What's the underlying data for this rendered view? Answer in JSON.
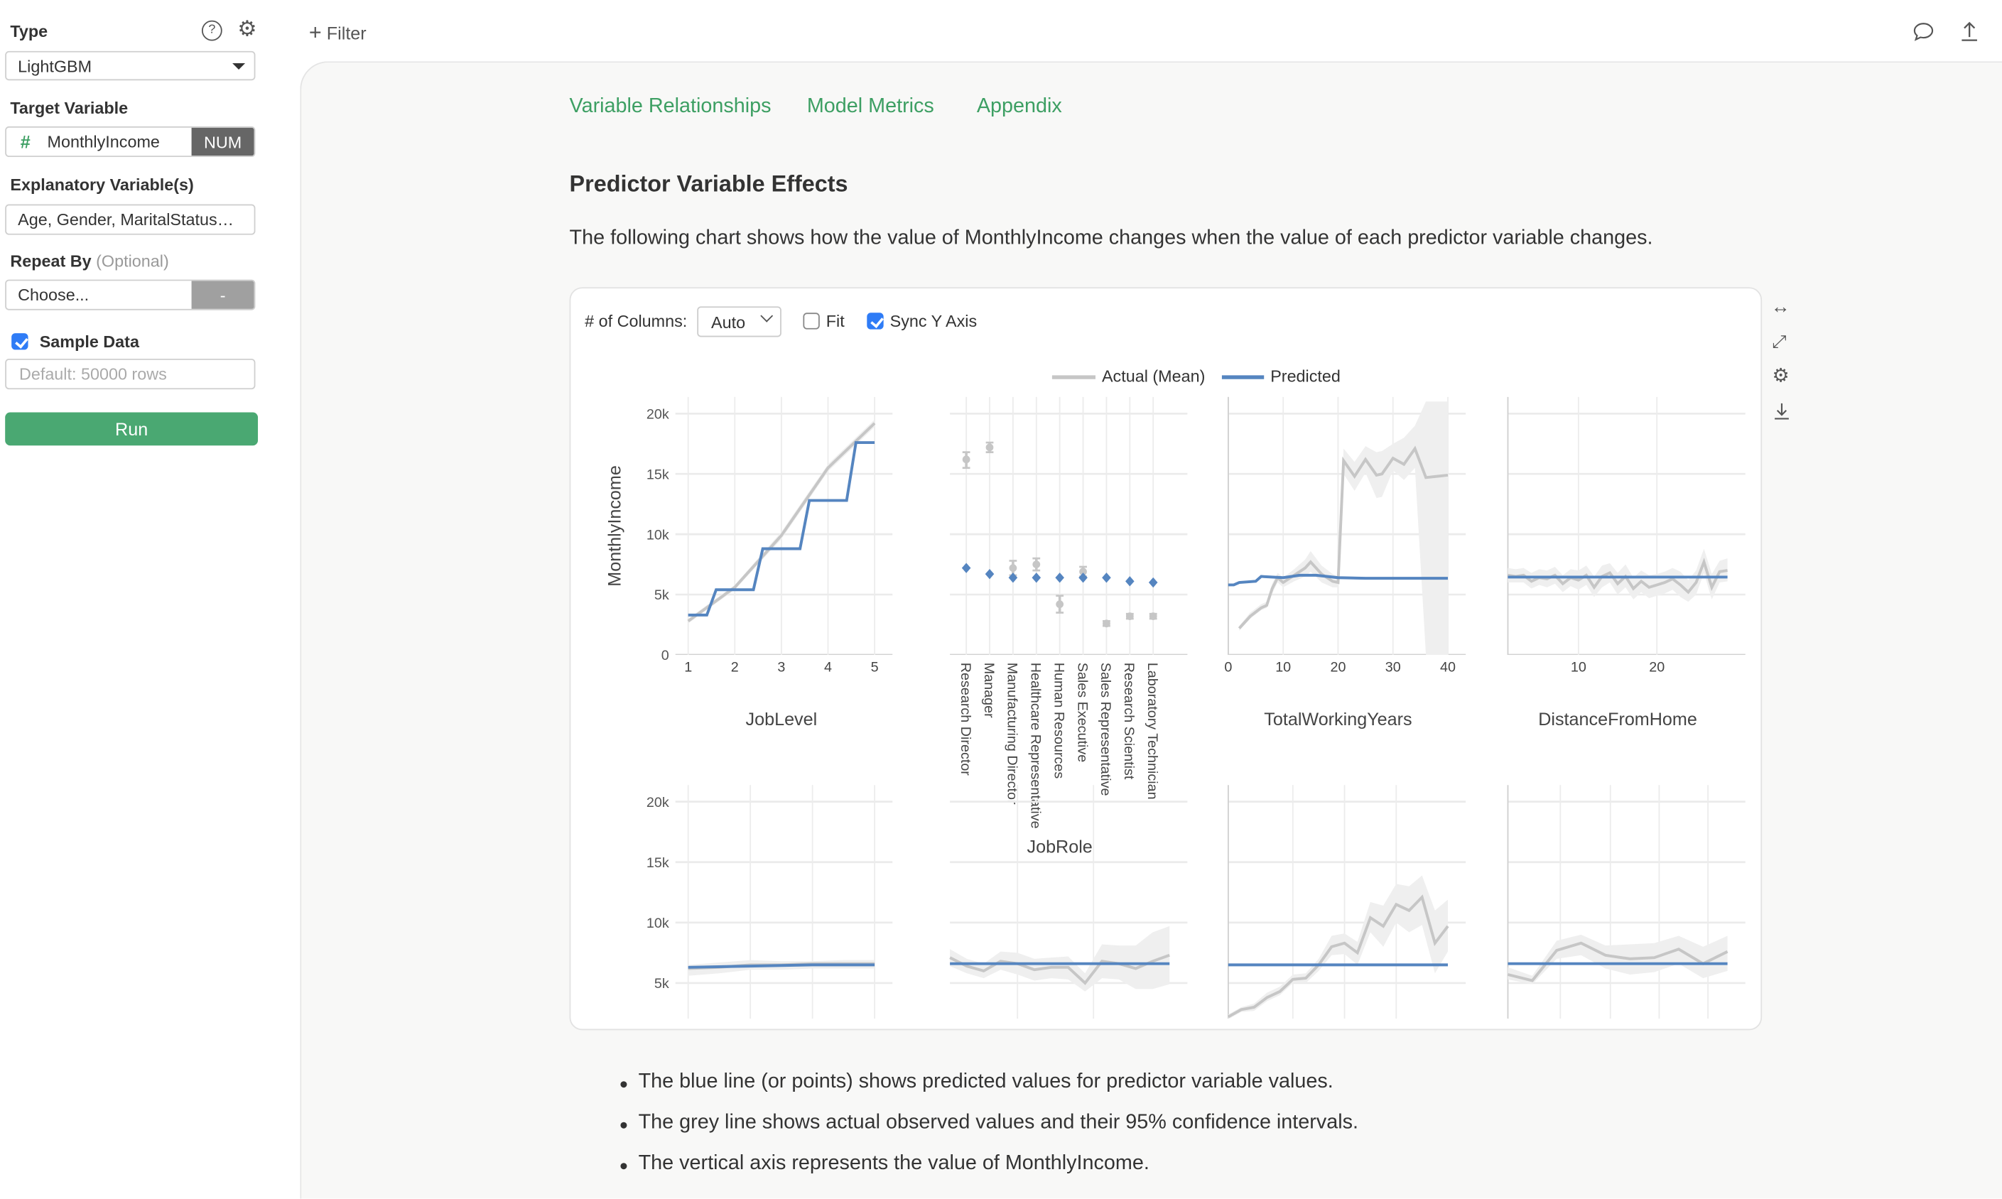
{
  "sidebar": {
    "type_label": "Type",
    "type_value": "LightGBM",
    "target_label": "Target Variable",
    "target_icon": "#",
    "target_value": "MonthlyIncome",
    "target_badge": "NUM",
    "explanatory_label": "Explanatory Variable(s)",
    "explanatory_value": "Age, Gender, MaritalStatus…",
    "repeat_label": "Repeat By",
    "repeat_optional": "(Optional)",
    "repeat_value": "Choose...",
    "repeat_button": "-",
    "sample_label": "Sample Data",
    "sample_checked": true,
    "sample_placeholder": "Default: 50000 rows",
    "run_label": "Run"
  },
  "topbar": {
    "filter_label": "Filter"
  },
  "main": {
    "tabs": [
      "Variable Relationships",
      "Model Metrics",
      "Appendix"
    ],
    "heading": "Predictor Variable Effects",
    "description": "The following chart shows how the value of MonthlyIncome changes when the value of each predictor variable changes.",
    "controls": {
      "columns_label": "# of Columns:",
      "columns_value": "Auto",
      "fit_label": "Fit",
      "fit_checked": false,
      "sync_label": "Sync Y Axis",
      "sync_checked": true
    },
    "notes": [
      "The blue line (or points) shows predicted values for predictor variable values.",
      "The grey line shows actual observed values and their 95% confidence intervals.",
      "The vertical axis represents the value of MonthlyIncome."
    ]
  },
  "colors": {
    "accent": "#3d9f63",
    "run": "#4aa872",
    "predicted": "#5585c0",
    "actual": "#c6c6c6",
    "band": "#efefef"
  },
  "chart_data": {
    "type": "line",
    "ylabel": "MonthlyIncome",
    "legend": [
      "Actual (Mean)",
      "Predicted"
    ],
    "legend_position": "top-center",
    "ylim": [
      0,
      20000
    ],
    "y_ticks": [
      "0",
      "5k",
      "10k",
      "15k",
      "20k"
    ],
    "y_tick_values": [
      0,
      5,
      10,
      15,
      20
    ],
    "y_unit": "thousands",
    "panels": [
      {
        "title": "JobLevel",
        "kind": "line",
        "x_range": [
          1,
          5
        ],
        "x_ticks": [
          1,
          2,
          3,
          4,
          5
        ],
        "actual": [
          [
            1,
            2.8,
            2.6,
            3.0
          ],
          [
            2,
            5.6,
            5.4,
            5.8
          ],
          [
            3,
            9.9,
            9.6,
            10.2
          ],
          [
            4,
            15.5,
            15.2,
            15.8
          ],
          [
            5,
            19.2,
            18.9,
            19.5
          ]
        ],
        "predicted": [
          [
            1,
            3.3
          ],
          [
            1.4,
            3.3
          ],
          [
            1.6,
            5.4
          ],
          [
            2.4,
            5.4
          ],
          [
            2.6,
            8.8
          ],
          [
            3.4,
            8.8
          ],
          [
            3.6,
            12.8
          ],
          [
            4.4,
            12.8
          ],
          [
            4.6,
            17.6
          ],
          [
            5,
            17.6
          ]
        ]
      },
      {
        "title": "JobRole",
        "kind": "category",
        "categories": [
          "Research Director",
          "Manager",
          "Manufacturing Director",
          "Healthcare Representative",
          "Human Resources",
          "Sales Executive",
          "Sales Representative",
          "Research Scientist",
          "Laboratory Technician"
        ],
        "actual": [
          [
            16.2,
            15.5,
            16.8
          ],
          [
            17.2,
            16.8,
            17.6
          ],
          [
            7.2,
            6.6,
            7.8
          ],
          [
            7.5,
            7.0,
            8.0
          ],
          [
            4.2,
            3.5,
            4.9
          ],
          [
            6.9,
            6.5,
            7.3
          ],
          [
            2.6,
            2.4,
            2.8
          ],
          [
            3.2,
            3.0,
            3.4
          ],
          [
            3.2,
            3.0,
            3.4
          ]
        ],
        "predicted": [
          7.2,
          6.7,
          6.4,
          6.4,
          6.4,
          6.4,
          6.4,
          6.1,
          6.0
        ]
      },
      {
        "title": "TotalWorkingYears",
        "kind": "line",
        "x_range": [
          0,
          40
        ],
        "x_ticks": [
          0,
          10,
          20,
          30,
          40
        ],
        "actual": [
          [
            2,
            2.2,
            2.0,
            2.4
          ],
          [
            4,
            3.2,
            3.0,
            3.5
          ],
          [
            6,
            3.9,
            3.7,
            4.2
          ],
          [
            7,
            4.1,
            3.9,
            4.4
          ],
          [
            8,
            5.5,
            5.1,
            5.9
          ],
          [
            9,
            6.4,
            6.0,
            6.8
          ],
          [
            10,
            6.0,
            5.6,
            6.4
          ],
          [
            12,
            6.6,
            6.1,
            7.1
          ],
          [
            14,
            7.2,
            6.5,
            7.9
          ],
          [
            15,
            7.7,
            6.9,
            8.6
          ],
          [
            17,
            6.7,
            6.0,
            7.4
          ],
          [
            19,
            6.1,
            5.6,
            6.7
          ],
          [
            20,
            6.0,
            5.6,
            6.5
          ],
          [
            21,
            16.1,
            15.0,
            17.1
          ],
          [
            23,
            14.8,
            13.6,
            16.0
          ],
          [
            25,
            16.2,
            15.1,
            17.3
          ],
          [
            27,
            14.9,
            13.0,
            16.8
          ],
          [
            28,
            15.0,
            13.1,
            16.9
          ],
          [
            30,
            16.3,
            15.3,
            17.5
          ],
          [
            32,
            15.8,
            14.5,
            18.0
          ],
          [
            34,
            17.1,
            15.5,
            19.0
          ],
          [
            36,
            14.7,
            0,
            21.0
          ],
          [
            38,
            14.8,
            0,
            21.0
          ],
          [
            40,
            14.9,
            0,
            21.0
          ]
        ],
        "predicted": [
          [
            0,
            5.8
          ],
          [
            1,
            5.8
          ],
          [
            2,
            6.0
          ],
          [
            5,
            6.1
          ],
          [
            6,
            6.5
          ],
          [
            10,
            6.4
          ],
          [
            13,
            6.6
          ],
          [
            16,
            6.6
          ],
          [
            20,
            6.4
          ],
          [
            25,
            6.35
          ],
          [
            40,
            6.35
          ]
        ]
      },
      {
        "title": "DistanceFromHome",
        "kind": "line",
        "x_range": [
          1,
          29
        ],
        "x_ticks": [
          10,
          20
        ],
        "actual": [
          [
            1,
            6.6,
            6.0,
            7.2
          ],
          [
            2,
            6.5,
            6.0,
            7.1
          ],
          [
            3,
            6.6,
            6.0,
            7.2
          ],
          [
            4,
            6.1,
            5.5,
            6.8
          ],
          [
            5,
            6.4,
            5.8,
            7.1
          ],
          [
            6,
            6.3,
            5.6,
            7.0
          ],
          [
            7,
            6.6,
            5.9,
            7.3
          ],
          [
            8,
            5.9,
            5.2,
            6.6
          ],
          [
            9,
            6.4,
            5.7,
            7.1
          ],
          [
            10,
            6.2,
            5.4,
            7.0
          ],
          [
            11,
            6.6,
            5.8,
            7.4
          ],
          [
            12,
            5.6,
            4.8,
            6.5
          ],
          [
            13,
            6.5,
            5.6,
            7.4
          ],
          [
            14,
            6.8,
            6.0,
            7.6
          ],
          [
            15,
            5.9,
            5.0,
            6.8
          ],
          [
            16,
            6.5,
            5.6,
            7.5
          ],
          [
            17,
            5.5,
            4.6,
            6.4
          ],
          [
            18,
            6.1,
            5.2,
            7.0
          ],
          [
            19,
            5.6,
            4.7,
            6.6
          ],
          [
            20,
            5.8,
            4.9,
            6.7
          ],
          [
            21,
            6.0,
            5.1,
            6.9
          ],
          [
            22,
            6.3,
            5.4,
            7.2
          ],
          [
            23,
            5.8,
            4.8,
            6.9
          ],
          [
            24,
            5.2,
            4.4,
            6.2
          ],
          [
            25,
            6.0,
            5.0,
            7.0
          ],
          [
            26,
            7.7,
            6.8,
            8.8
          ],
          [
            27,
            5.6,
            4.6,
            6.7
          ],
          [
            28,
            6.9,
            6.0,
            7.8
          ],
          [
            29,
            7.0,
            6.1,
            8.0
          ]
        ],
        "predicted": [
          [
            1,
            6.45
          ],
          [
            29,
            6.45
          ]
        ]
      },
      {
        "title": "",
        "kind": "line",
        "x_range": [
          0,
          3
        ],
        "x_grid": [
          0,
          1,
          2,
          3
        ],
        "actual": [
          [
            0,
            6.2,
            5.6,
            6.5
          ],
          [
            0.5,
            6.3,
            5.8,
            6.7
          ],
          [
            1,
            6.5,
            6.1,
            6.9
          ],
          [
            1.5,
            6.5,
            6.1,
            6.8
          ],
          [
            2,
            6.6,
            6.2,
            6.8
          ],
          [
            2.5,
            6.6,
            6.2,
            6.9
          ],
          [
            3,
            6.6,
            6.2,
            6.9
          ]
        ],
        "predicted": [
          [
            0,
            6.3
          ],
          [
            1,
            6.4
          ],
          [
            2,
            6.5
          ],
          [
            3,
            6.5
          ]
        ]
      },
      {
        "title": "",
        "kind": "line",
        "x_range": [
          0,
          13
        ],
        "x_grid": [
          4,
          8.5
        ],
        "actual": [
          [
            0,
            7.1,
            6.4,
            7.8
          ],
          [
            1,
            6.4,
            5.8,
            7.0
          ],
          [
            2,
            6.0,
            5.4,
            6.6
          ],
          [
            3,
            6.8,
            6.1,
            7.6
          ],
          [
            4,
            6.6,
            5.7,
            7.5
          ],
          [
            5,
            6.1,
            5.2,
            7.0
          ],
          [
            6,
            6.3,
            5.4,
            7.1
          ],
          [
            7,
            6.3,
            5.3,
            7.2
          ],
          [
            8,
            5.0,
            4.3,
            5.8
          ],
          [
            9,
            6.8,
            5.4,
            8.2
          ],
          [
            10,
            6.6,
            5.3,
            8.1
          ],
          [
            11,
            6.2,
            4.5,
            8.1
          ],
          [
            12,
            6.8,
            4.5,
            9.2
          ],
          [
            13,
            7.3,
            4.9,
            9.7
          ]
        ],
        "predicted": [
          [
            0,
            6.6
          ],
          [
            13,
            6.6
          ]
        ]
      },
      {
        "title": "",
        "kind": "line",
        "x_range": [
          0,
          17
        ],
        "x_grid": [
          5,
          9,
          13
        ],
        "actual": [
          [
            0,
            2.2,
            2.0,
            2.4
          ],
          [
            1,
            2.8,
            2.6,
            3.0
          ],
          [
            2,
            3.0,
            2.7,
            3.3
          ],
          [
            3,
            3.8,
            3.5,
            4.2
          ],
          [
            4,
            4.3,
            4.0,
            4.7
          ],
          [
            5,
            5.3,
            5.0,
            5.7
          ],
          [
            6,
            5.4,
            5.0,
            5.8
          ],
          [
            7,
            6.5,
            6.0,
            7.0
          ],
          [
            8,
            8.0,
            7.3,
            8.9
          ],
          [
            9,
            8.3,
            7.4,
            9.1
          ],
          [
            10,
            7.5,
            6.5,
            8.4
          ],
          [
            11,
            10.4,
            9.2,
            11.7
          ],
          [
            12,
            9.7,
            8.0,
            11.4
          ],
          [
            13,
            11.5,
            10.0,
            13.2
          ],
          [
            14,
            11.0,
            9.2,
            13.0
          ],
          [
            15,
            12.1,
            9.8,
            13.9
          ],
          [
            16,
            8.3,
            5.8,
            11.0
          ],
          [
            17,
            9.7,
            7.6,
            11.9
          ]
        ],
        "predicted": [
          [
            0,
            6.5
          ],
          [
            17,
            6.5
          ]
        ]
      },
      {
        "title": "",
        "kind": "line",
        "x_range": [
          0,
          9
        ],
        "x_grid": [
          2.15,
          4.2,
          6.2,
          8.2
        ],
        "actual": [
          [
            0,
            5.7,
            5.3,
            6.3
          ],
          [
            1,
            5.2,
            4.9,
            5.6
          ],
          [
            2,
            7.7,
            7.0,
            8.5
          ],
          [
            3,
            8.3,
            7.3,
            9.0
          ],
          [
            4,
            7.3,
            6.2,
            8.1
          ],
          [
            5,
            7.0,
            5.7,
            8.2
          ],
          [
            6,
            7.1,
            5.9,
            8.3
          ],
          [
            7,
            7.8,
            6.6,
            8.9
          ],
          [
            8,
            6.6,
            5.4,
            8.0
          ],
          [
            9,
            7.6,
            6.0,
            8.9
          ]
        ],
        "predicted": [
          [
            0,
            6.6
          ],
          [
            9,
            6.6
          ]
        ]
      }
    ]
  }
}
